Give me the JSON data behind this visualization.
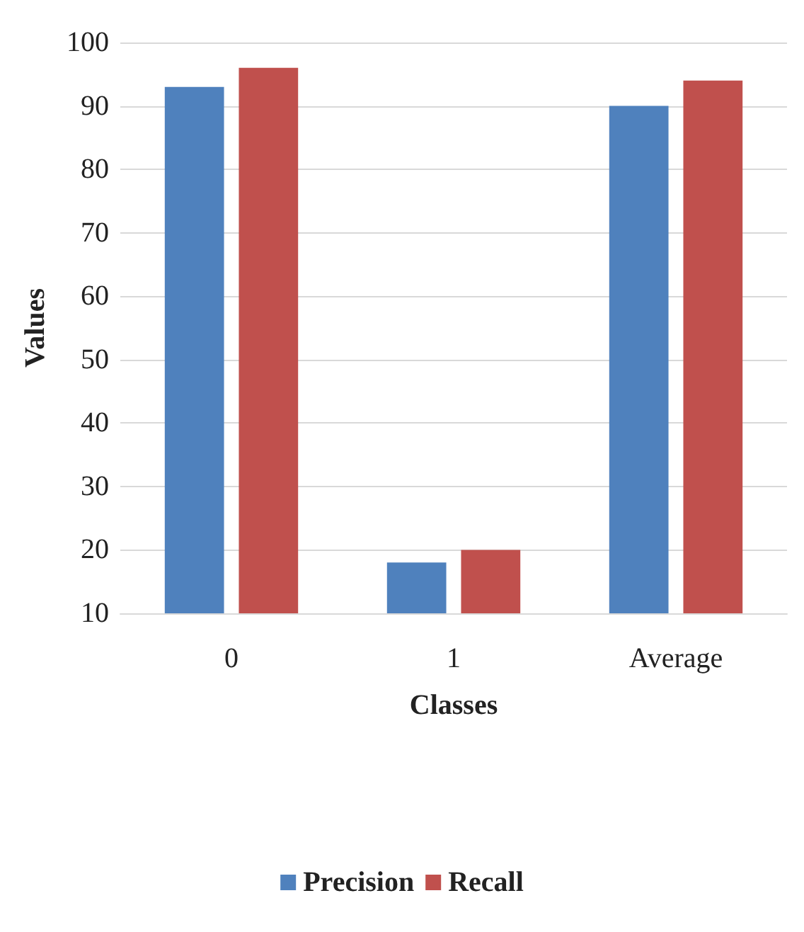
{
  "chart_data": {
    "type": "bar",
    "xlabel": "Classes",
    "ylabel": "Values",
    "categories": [
      "0",
      "1",
      "Average"
    ],
    "series": [
      {
        "name": "Precision",
        "color": "#4f81bd",
        "values": [
          93,
          18,
          90
        ]
      },
      {
        "name": "Recall",
        "color": "#c0504d",
        "values": [
          96,
          20,
          94
        ]
      }
    ],
    "ylim": [
      10,
      100
    ],
    "yticks": [
      10,
      20,
      30,
      40,
      50,
      60,
      70,
      80,
      90,
      100
    ],
    "grid": "y",
    "legend": "bottom"
  }
}
